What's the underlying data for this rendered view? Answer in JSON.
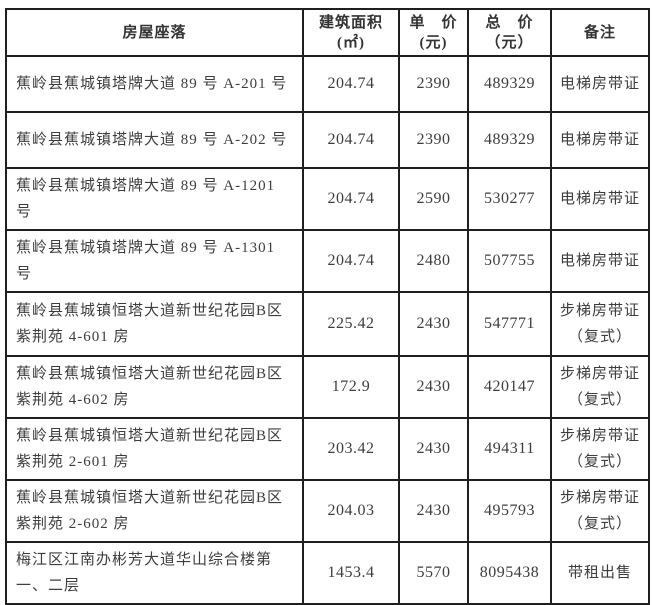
{
  "table": {
    "headers": {
      "address": "房屋座落",
      "area_line1": "建筑面积",
      "area_line2": "(㎡)",
      "unit_price_line1": "单　价",
      "unit_price_line2": "(元)",
      "total_price_line1": "总　价",
      "total_price_line2": "（元）",
      "remark": "备注"
    },
    "rows": [
      {
        "address": "蕉岭县蕉城镇塔牌大道 89 号 A-201 号",
        "area": "204.74",
        "unit_price": "2390",
        "total_price": "489329",
        "remark": "电梯房带证",
        "remark2": ""
      },
      {
        "address": "蕉岭县蕉城镇塔牌大道 89 号 A-202 号",
        "area": "204.74",
        "unit_price": "2390",
        "total_price": "489329",
        "remark": "电梯房带证",
        "remark2": ""
      },
      {
        "address": "蕉岭县蕉城镇塔牌大道 89 号 A-1201 号",
        "area": "204.74",
        "unit_price": "2590",
        "total_price": "530277",
        "remark": "电梯房带证",
        "remark2": ""
      },
      {
        "address": "蕉岭县蕉城镇塔牌大道 89 号 A-1301 号",
        "area": "204.74",
        "unit_price": "2480",
        "total_price": "507755",
        "remark": "电梯房带证",
        "remark2": ""
      },
      {
        "address": "蕉岭县蕉城镇恒塔大道新世纪花园B区紫荆苑 4-601 房",
        "area": "225.42",
        "unit_price": "2430",
        "total_price": "547771",
        "remark": "步梯房带证",
        "remark2": "（复式）"
      },
      {
        "address": "蕉岭县蕉城镇恒塔大道新世纪花园B区紫荆苑 4-602 房",
        "area": "172.9",
        "unit_price": "2430",
        "total_price": "420147",
        "remark": "步梯房带证",
        "remark2": "（复式）"
      },
      {
        "address": "蕉岭县蕉城镇恒塔大道新世纪花园B区紫荆苑 2-601 房",
        "area": "203.42",
        "unit_price": "2430",
        "total_price": "494311",
        "remark": "步梯房带证",
        "remark2": "（复式）"
      },
      {
        "address": "蕉岭县蕉城镇恒塔大道新世纪花园B区紫荆苑 2-602 房",
        "area": "204.03",
        "unit_price": "2430",
        "total_price": "495793",
        "remark": "步梯房带证",
        "remark2": "（复式）"
      },
      {
        "address": "梅江区江南办彬芳大道华山综合楼第一、二层",
        "area": "1453.4",
        "unit_price": "5570",
        "total_price": "8095438",
        "remark": "带租出售",
        "remark2": ""
      }
    ]
  },
  "colors": {
    "border": "#1f1f1f",
    "text": "#3d3d3d",
    "background": "#ffffff"
  }
}
